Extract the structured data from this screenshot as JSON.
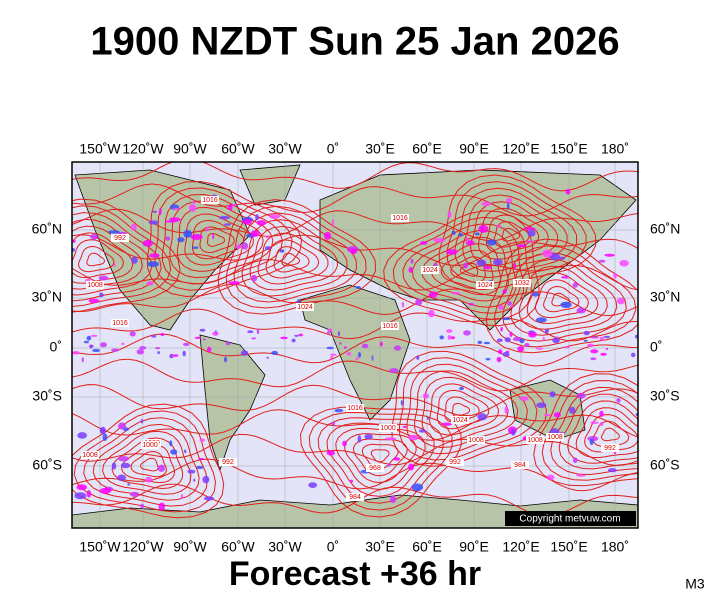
{
  "title": "1900 NZDT Sun 25 Jan 2026",
  "map": {
    "longitude_labels": [
      "150˚W",
      "120˚W",
      "90˚W",
      "60˚W",
      "30˚W",
      "0˚",
      "30˚E",
      "60˚E",
      "90˚E",
      "120˚E",
      "150˚E",
      "180˚"
    ],
    "latitude_labels": [
      "60˚N",
      "30˚N",
      "0˚",
      "30˚S",
      "60˚S"
    ],
    "isobar_labels": [
      "1016",
      "1024",
      "1008",
      "1000",
      "992",
      "1016",
      "1024",
      "1032",
      "1024",
      "1016",
      "1016",
      "1008",
      "1000",
      "992",
      "984",
      "968",
      "1008",
      "992",
      "1024",
      "1008",
      "984",
      "992",
      "1008",
      "1016",
      "1000"
    ],
    "copyright": "Copyright metvuw.com"
  },
  "footer": {
    "caption": "Forecast +36 hr",
    "code": "M3"
  }
}
